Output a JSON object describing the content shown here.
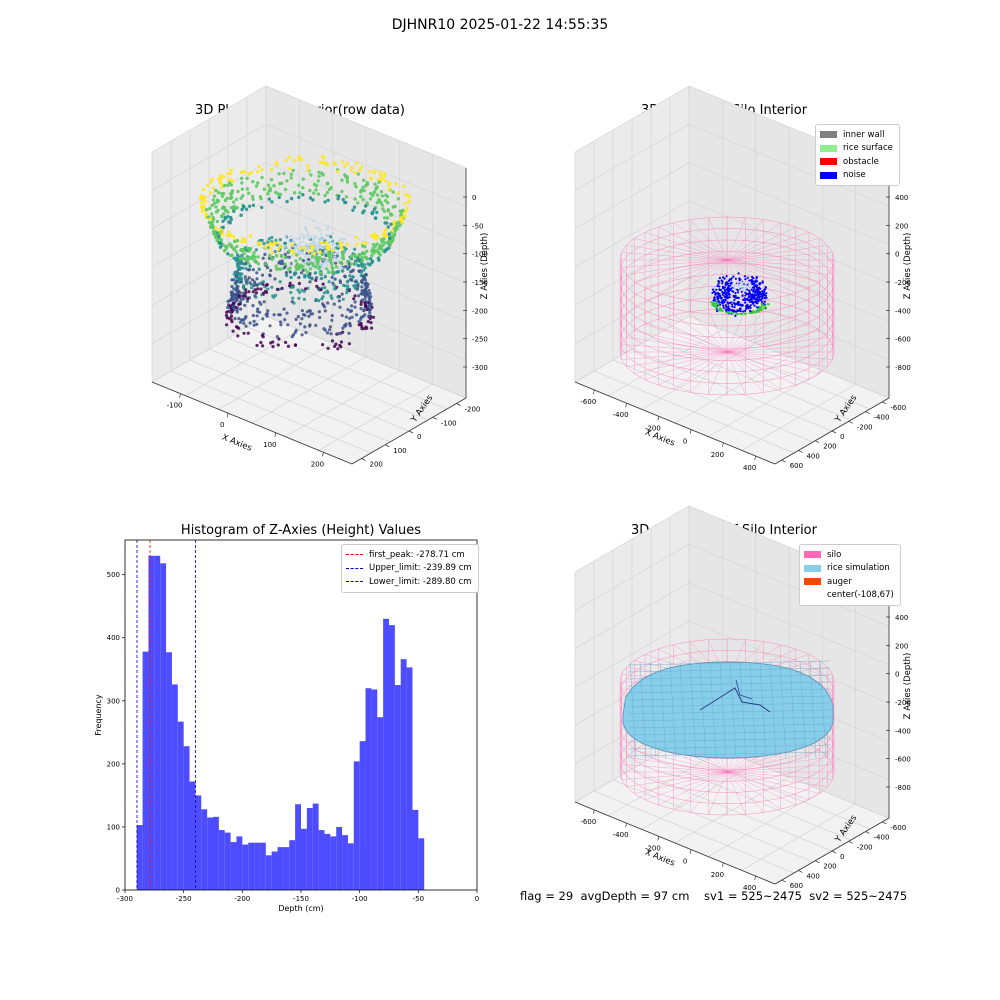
{
  "figure": {
    "title": "DJHNR10 2025-01-22 14:55:35",
    "status_line": "flag = 29  avgDepth = 97 cm    sv1 = 525~2475  sv2 = 525~2475"
  },
  "colors": {
    "viridis": [
      "#440154",
      "#3b528b",
      "#21918c",
      "#5ec962",
      "#fde725"
    ],
    "inner_wall": "#808080",
    "rice_surface": "#90ee90",
    "obstacle": "#ff0000",
    "noise": "#0000ff",
    "silo": "#ff69b4",
    "rice_simulation": "#87ceeb",
    "auger": "#ff4500",
    "hist_bar": "#4d4dff",
    "first_peak": "#ff0000",
    "limit": "#0000cc"
  },
  "chart_data": [
    {
      "type": "scatter3d",
      "title": "3D Plot of Silo Interior(row data)",
      "xlabel": "X Axies",
      "ylabel": "Y Axies",
      "zlabel": "Z Axies (Depth)",
      "x_ticks": [
        "-100",
        "0",
        "100",
        "200"
      ],
      "y_ticks": [
        "200",
        "100",
        "0",
        "-100",
        "-200"
      ],
      "z_ticks": [
        "0",
        "-50",
        "-100",
        "-150",
        "-200",
        "-250",
        "-300"
      ]
    },
    {
      "type": "scatter3d",
      "title": "3D classify of Silo Interior",
      "xlabel": "X Axies",
      "ylabel": "Y Axies",
      "zlabel": "Z Axies (Depth)",
      "x_ticks": [
        "-600",
        "-400",
        "-200",
        "0",
        "200",
        "400"
      ],
      "y_ticks": [
        "600",
        "400",
        "200",
        "0",
        "-200",
        "-400",
        "-600"
      ],
      "z_ticks": [
        "400",
        "200",
        "0",
        "-200",
        "-400",
        "-600",
        "-800"
      ],
      "legend": [
        "inner wall",
        "rice surface",
        "obstacle",
        "noise"
      ]
    },
    {
      "type": "bar",
      "title": "Histogram of Z-Axies (Height) Values",
      "xlabel": "Depth (cm)",
      "ylabel": "Frequency",
      "xlim": [
        -300,
        0
      ],
      "ylim": [
        0,
        555
      ],
      "x_ticks": [
        -300,
        -250,
        -200,
        -150,
        -100,
        -50,
        0
      ],
      "y_ticks": [
        0,
        100,
        200,
        300,
        400,
        500
      ],
      "bin_start": -290,
      "bin_width": 5,
      "values": [
        103,
        378,
        530,
        530,
        518,
        377,
        326,
        267,
        228,
        172,
        150,
        128,
        115,
        116,
        95,
        91,
        76,
        85,
        72,
        75,
        75,
        75,
        55,
        61,
        68,
        68,
        79,
        136,
        97,
        130,
        137,
        95,
        89,
        85,
        100,
        87,
        74,
        204,
        236,
        320,
        318,
        274,
        430,
        420,
        325,
        366,
        353,
        127,
        82
      ],
      "vlines": [
        {
          "label": "first_peak: -278.71 cm",
          "x": -278.71,
          "color": "#ff0000"
        },
        {
          "label": "Upper_limit: -239.89 cm",
          "x": -239.89,
          "color": "#0000cc"
        },
        {
          "label": "Lower_limit: -289.80 cm",
          "x": -289.8,
          "color": "#0000cc"
        }
      ]
    },
    {
      "type": "surface3d",
      "title": "3D simulation of Silo Interior",
      "xlabel": "X Axies",
      "ylabel": "Y Axies",
      "zlabel": "Z Axies (Depth)",
      "x_ticks": [
        "-600",
        "-400",
        "-200",
        "0",
        "200",
        "400"
      ],
      "y_ticks": [
        "600",
        "400",
        "200",
        "0",
        "-200",
        "-400",
        "-600"
      ],
      "z_ticks": [
        "400",
        "200",
        "0",
        "-200",
        "-400",
        "-600",
        "-800"
      ],
      "legend": [
        "silo",
        "rice simulation",
        "auger",
        "center(-108,67)"
      ]
    }
  ]
}
